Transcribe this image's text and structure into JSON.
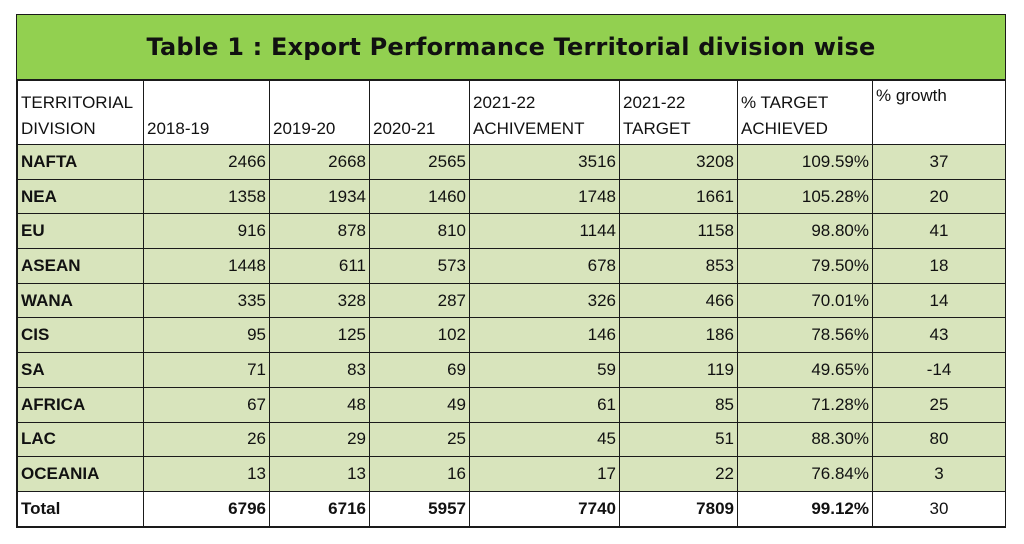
{
  "title": "Table 1 : Export Performance Territorial division wise",
  "columns": [
    {
      "line1": "TERRITORIAL",
      "line2": "DIVISION"
    },
    {
      "line1": "",
      "line2": "2018-19"
    },
    {
      "line1": "",
      "line2": "2019-20"
    },
    {
      "line1": "",
      "line2": "2020-21"
    },
    {
      "line1": "2021-22",
      "line2": "ACHIVEMENT"
    },
    {
      "line1": "2021-22",
      "line2": "TARGET"
    },
    {
      "line1": "% TARGET",
      "line2": "ACHIEVED"
    },
    {
      "line1": "% growth",
      "line2": ""
    }
  ],
  "rows": [
    {
      "division": "NAFTA",
      "y2018_19": "2466",
      "y2019_20": "2668",
      "y2020_21": "2565",
      "achievement": "3516",
      "target": "3208",
      "pct_target": "109.59%",
      "growth": "37"
    },
    {
      "division": "NEA",
      "y2018_19": "1358",
      "y2019_20": "1934",
      "y2020_21": "1460",
      "achievement": "1748",
      "target": "1661",
      "pct_target": "105.28%",
      "growth": "20"
    },
    {
      "division": "EU",
      "y2018_19": "916",
      "y2019_20": "878",
      "y2020_21": "810",
      "achievement": "1144",
      "target": "1158",
      "pct_target": "98.80%",
      "growth": "41"
    },
    {
      "division": "ASEAN",
      "y2018_19": "1448",
      "y2019_20": "611",
      "y2020_21": "573",
      "achievement": "678",
      "target": "853",
      "pct_target": "79.50%",
      "growth": "18"
    },
    {
      "division": "WANA",
      "y2018_19": "335",
      "y2019_20": "328",
      "y2020_21": "287",
      "achievement": "326",
      "target": "466",
      "pct_target": "70.01%",
      "growth": "14"
    },
    {
      "division": "CIS",
      "y2018_19": "95",
      "y2019_20": "125",
      "y2020_21": "102",
      "achievement": "146",
      "target": "186",
      "pct_target": "78.56%",
      "growth": "43"
    },
    {
      "division": "SA",
      "y2018_19": "71",
      "y2019_20": "83",
      "y2020_21": "69",
      "achievement": "59",
      "target": "119",
      "pct_target": "49.65%",
      "growth": "-14"
    },
    {
      "division": "AFRICA",
      "y2018_19": "67",
      "y2019_20": "48",
      "y2020_21": "49",
      "achievement": "61",
      "target": "85",
      "pct_target": "71.28%",
      "growth": "25"
    },
    {
      "division": "LAC",
      "y2018_19": "26",
      "y2019_20": "29",
      "y2020_21": "25",
      "achievement": "45",
      "target": "51",
      "pct_target": "88.30%",
      "growth": "80"
    },
    {
      "division": "OCEANIA",
      "y2018_19": "13",
      "y2019_20": "13",
      "y2020_21": "16",
      "achievement": "17",
      "target": "22",
      "pct_target": "76.84%",
      "growth": "3"
    }
  ],
  "total": {
    "division": "Total",
    "y2018_19": "6796",
    "y2019_20": "6716",
    "y2020_21": "5957",
    "achievement": "7740",
    "target": "7809",
    "pct_target": "99.12%",
    "growth": "30"
  },
  "colors": {
    "title_bg": "#92d050",
    "row_bg": "#d8e4bc",
    "header_bg": "#ffffff",
    "border": "#1a1a1a"
  }
}
